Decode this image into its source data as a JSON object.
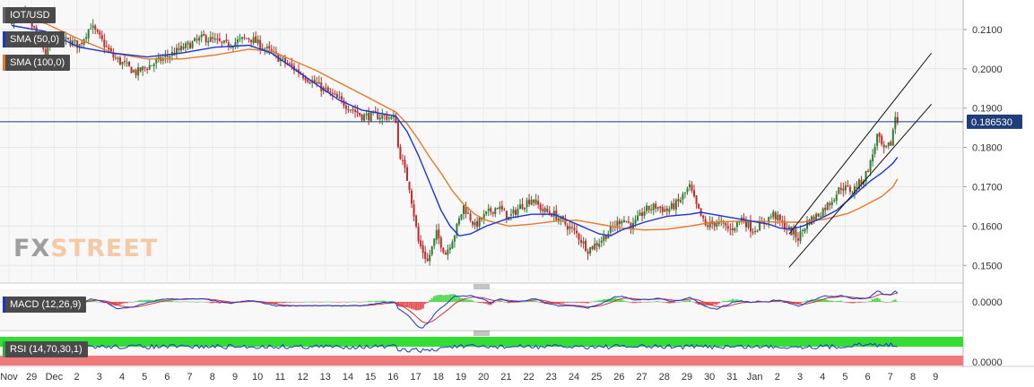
{
  "chart_data": {
    "type": "candlestick",
    "symbol": "IOT/USD",
    "last_price": "0.186530",
    "colors": {
      "up": "#2e7d32",
      "down": "#c62828",
      "sma50": "#1a35d6",
      "sma100": "#e8782a",
      "price_line": "#1f3d7a",
      "rsi_band_high": "#33dd33",
      "rsi_band_low": "#f07a7a",
      "macd_signal": "#d33333",
      "macd_hist_pos": "#3ad33a",
      "macd_hist_neg": "#e33a3a"
    },
    "x_axis": {
      "labels": [
        "Nov",
        "29",
        "Dec",
        "2",
        "3",
        "4",
        "5",
        "6",
        "7",
        "8",
        "9",
        "10",
        "11",
        "12",
        "13",
        "14",
        "15",
        "16",
        "17",
        "18",
        "19",
        "20",
        "21",
        "22",
        "23",
        "24",
        "25",
        "26",
        "27",
        "28",
        "29",
        "30",
        "31",
        "Jan",
        "2",
        "3",
        "4",
        "5",
        "6",
        "7",
        "8",
        "9"
      ]
    },
    "y_axis": {
      "ticks": [
        "0.2100",
        "0.2000",
        "0.1900",
        "0.1800",
        "0.1700",
        "0.1600",
        "0.1500"
      ],
      "range": [
        0.1455,
        0.2175
      ]
    },
    "series": [
      {
        "name": "IOT/USD",
        "keypoints": [
          [
            0,
            0.2125
          ],
          [
            0.5,
            0.214
          ],
          [
            1.0,
            0.21
          ],
          [
            1.5,
            0.204
          ],
          [
            2.0,
            0.208
          ],
          [
            3.0,
            0.206
          ],
          [
            3.5,
            0.211
          ],
          [
            4.5,
            0.203
          ],
          [
            5.5,
            0.199
          ],
          [
            6.5,
            0.202
          ],
          [
            7.5,
            0.205
          ],
          [
            8.5,
            0.208
          ],
          [
            9.5,
            0.206
          ],
          [
            10.5,
            0.208
          ],
          [
            11.5,
            0.204
          ],
          [
            12.5,
            0.2
          ],
          [
            13.5,
            0.196
          ],
          [
            14.5,
            0.192
          ],
          [
            15.5,
            0.188
          ],
          [
            16.5,
            0.188
          ],
          [
            17.0,
            0.187
          ],
          [
            17.1,
            0.18
          ],
          [
            17.6,
            0.17
          ],
          [
            18.0,
            0.156
          ],
          [
            18.4,
            0.151
          ],
          [
            18.8,
            0.158
          ],
          [
            19.2,
            0.153
          ],
          [
            19.6,
            0.158
          ],
          [
            20.0,
            0.165
          ],
          [
            20.5,
            0.16
          ],
          [
            21.0,
            0.163
          ],
          [
            21.5,
            0.165
          ],
          [
            22.0,
            0.162
          ],
          [
            22.5,
            0.165
          ],
          [
            23.0,
            0.167
          ],
          [
            23.5,
            0.164
          ],
          [
            24.0,
            0.163
          ],
          [
            25.0,
            0.158
          ],
          [
            25.5,
            0.154
          ],
          [
            26.0,
            0.156
          ],
          [
            26.5,
            0.159
          ],
          [
            27.0,
            0.162
          ],
          [
            27.5,
            0.16
          ],
          [
            28.0,
            0.164
          ],
          [
            28.5,
            0.165
          ],
          [
            29.0,
            0.164
          ],
          [
            29.5,
            0.166
          ],
          [
            30.0,
            0.17
          ],
          [
            30.3,
            0.165
          ],
          [
            30.7,
            0.16
          ],
          [
            31.2,
            0.161
          ],
          [
            31.8,
            0.159
          ],
          [
            32.3,
            0.162
          ],
          [
            32.8,
            0.159
          ],
          [
            33.3,
            0.161
          ],
          [
            33.7,
            0.163
          ],
          [
            34.2,
            0.16
          ],
          [
            34.8,
            0.157
          ],
          [
            35.2,
            0.161
          ],
          [
            35.7,
            0.163
          ],
          [
            36.2,
            0.166
          ],
          [
            36.7,
            0.17
          ],
          [
            37.2,
            0.169
          ],
          [
            37.7,
            0.172
          ],
          [
            38.0,
            0.176
          ],
          [
            38.3,
            0.183
          ],
          [
            38.6,
            0.179
          ],
          [
            38.9,
            0.181
          ],
          [
            39.1,
            0.188
          ],
          [
            39.2,
            0.1865
          ]
        ]
      },
      {
        "name": "SMA (50,0)",
        "keypoints": [
          [
            0,
            0.211
          ],
          [
            1.5,
            0.2095
          ],
          [
            3.0,
            0.2055
          ],
          [
            4.5,
            0.204
          ],
          [
            6.0,
            0.203
          ],
          [
            7.5,
            0.204
          ],
          [
            9.0,
            0.2055
          ],
          [
            10.5,
            0.206
          ],
          [
            11.5,
            0.204
          ],
          [
            12.5,
            0.2
          ],
          [
            13.5,
            0.196
          ],
          [
            14.5,
            0.192
          ],
          [
            15.5,
            0.1895
          ],
          [
            16.5,
            0.1885
          ],
          [
            17.0,
            0.188
          ],
          [
            17.5,
            0.184
          ],
          [
            18.0,
            0.178
          ],
          [
            18.5,
            0.171
          ],
          [
            19.0,
            0.164
          ],
          [
            19.4,
            0.16
          ],
          [
            19.8,
            0.1575
          ],
          [
            20.3,
            0.158
          ],
          [
            21.0,
            0.16
          ],
          [
            22.0,
            0.162
          ],
          [
            23.0,
            0.163
          ],
          [
            24.0,
            0.163
          ],
          [
            25.0,
            0.1605
          ],
          [
            26.0,
            0.158
          ],
          [
            26.5,
            0.1575
          ],
          [
            27.0,
            0.159
          ],
          [
            28.0,
            0.161
          ],
          [
            29.0,
            0.1625
          ],
          [
            30.0,
            0.163
          ],
          [
            30.5,
            0.1635
          ],
          [
            31.0,
            0.163
          ],
          [
            32.0,
            0.162
          ],
          [
            33.0,
            0.161
          ],
          [
            33.5,
            0.1605
          ],
          [
            34.0,
            0.1595
          ],
          [
            34.5,
            0.1592
          ],
          [
            35.0,
            0.16
          ],
          [
            35.5,
            0.1612
          ],
          [
            36.0,
            0.1625
          ],
          [
            36.5,
            0.164
          ],
          [
            37.0,
            0.1665
          ],
          [
            37.5,
            0.169
          ],
          [
            38.0,
            0.1715
          ],
          [
            38.5,
            0.1735
          ],
          [
            39.0,
            0.176
          ],
          [
            39.2,
            0.1775
          ]
        ]
      },
      {
        "name": "SMA (100,0)",
        "keypoints": [
          [
            0,
            0.214
          ],
          [
            1.5,
            0.2115
          ],
          [
            3.0,
            0.2075
          ],
          [
            4.5,
            0.204
          ],
          [
            6.0,
            0.2025
          ],
          [
            7.5,
            0.2025
          ],
          [
            9.0,
            0.2035
          ],
          [
            10.5,
            0.205
          ],
          [
            11.5,
            0.2045
          ],
          [
            12.5,
            0.202
          ],
          [
            13.5,
            0.1995
          ],
          [
            14.5,
            0.1965
          ],
          [
            15.5,
            0.1935
          ],
          [
            16.5,
            0.1905
          ],
          [
            17.0,
            0.189
          ],
          [
            17.5,
            0.186
          ],
          [
            18.0,
            0.182
          ],
          [
            18.5,
            0.1775
          ],
          [
            19.0,
            0.1735
          ],
          [
            19.5,
            0.169
          ],
          [
            20.0,
            0.1655
          ],
          [
            20.5,
            0.163
          ],
          [
            21.0,
            0.1615
          ],
          [
            22.0,
            0.16
          ],
          [
            23.0,
            0.1605
          ],
          [
            24.0,
            0.1612
          ],
          [
            25.0,
            0.1615
          ],
          [
            26.0,
            0.1605
          ],
          [
            27.0,
            0.1595
          ],
          [
            28.0,
            0.159
          ],
          [
            29.0,
            0.1592
          ],
          [
            30.0,
            0.16
          ],
          [
            31.0,
            0.161
          ],
          [
            32.0,
            0.1612
          ],
          [
            33.0,
            0.1612
          ],
          [
            34.0,
            0.161
          ],
          [
            35.0,
            0.161
          ],
          [
            36.0,
            0.1618
          ],
          [
            37.0,
            0.1632
          ],
          [
            37.5,
            0.1645
          ],
          [
            38.0,
            0.166
          ],
          [
            38.5,
            0.1675
          ],
          [
            39.0,
            0.17
          ],
          [
            39.2,
            0.172
          ]
        ]
      }
    ],
    "trend_channel": {
      "upper": [
        [
          34.4,
          0.158
        ],
        [
          40.7,
          0.204
        ]
      ],
      "lower": [
        [
          34.4,
          0.1495
        ],
        [
          40.7,
          0.191
        ]
      ]
    },
    "indicators": [
      {
        "name": "MACD (12,26,9)",
        "tick": "0.0000"
      },
      {
        "name": "RSI (14,70,30,1)",
        "tick": "0.0000"
      }
    ]
  }
}
